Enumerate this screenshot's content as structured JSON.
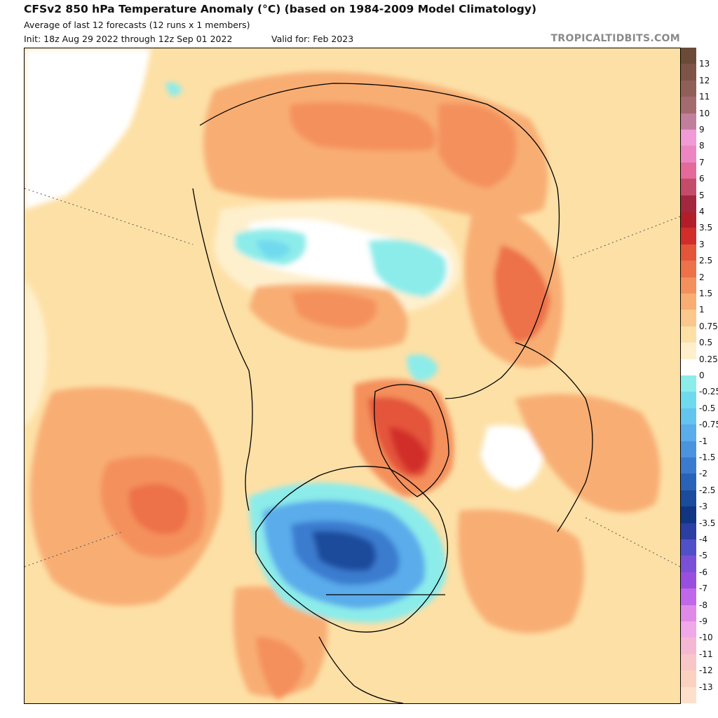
{
  "header": {
    "title": "CFSv2 850 hPa Temperature Anomaly (°C) (based on 1984-2009 Model Climatology)",
    "subtitle": "Average of last 12 forecasts (12 runs x 1 members)",
    "init": "Init: 18z Aug 29 2022 through 12z Sep 01 2022",
    "valid": "Valid for: Feb 2023",
    "brand": "TROPICALTIDBITS.COM"
  },
  "map": {
    "projection": "north-polar-stereographic",
    "field": "850 hPa temperature anomaly",
    "notable_anomalies": [
      "strong cold anomaly over central and eastern Canada and northern USA",
      "strong warm anomaly over Greenland",
      "warm anomaly over northeastern Pacific",
      "warm anomalies over Siberia and Russia",
      "cool anomalies over the Arctic Ocean"
    ]
  },
  "colorbar": {
    "levels": [
      {
        "label": "13",
        "color": "#6b4b38"
      },
      {
        "label": "12",
        "color": "#7d5446"
      },
      {
        "label": "11",
        "color": "#8f5f58"
      },
      {
        "label": "10",
        "color": "#a36b6e"
      },
      {
        "label": "9",
        "color": "#c27f9c"
      },
      {
        "label": "8",
        "color": "#f09ad6"
      },
      {
        "label": "7",
        "color": "#ec86c3"
      },
      {
        "label": "6",
        "color": "#e36a9a"
      },
      {
        "label": "5",
        "color": "#c44c6a"
      },
      {
        "label": "4",
        "color": "#a3273f"
      },
      {
        "label": "3.5",
        "color": "#b11e2a"
      },
      {
        "label": "3",
        "color": "#d12d2a"
      },
      {
        "label": "2.5",
        "color": "#e4553a"
      },
      {
        "label": "2",
        "color": "#ed7149"
      },
      {
        "label": "1.5",
        "color": "#f4905c"
      },
      {
        "label": "1",
        "color": "#f8ad73"
      },
      {
        "label": "0.75",
        "color": "#fbc78c"
      },
      {
        "label": "0.5",
        "color": "#fde0a6"
      },
      {
        "label": "0.25",
        "color": "#fef0cd"
      },
      {
        "label": "0",
        "color": "#ffffff"
      },
      {
        "label": "-0.25",
        "color": "#8cecea"
      },
      {
        "label": "-0.5",
        "color": "#6fd9ee"
      },
      {
        "label": "-0.75",
        "color": "#63c4ef"
      },
      {
        "label": "-1",
        "color": "#5aaceb"
      },
      {
        "label": "-1.5",
        "color": "#4a93df"
      },
      {
        "label": "-2",
        "color": "#3a7bcf"
      },
      {
        "label": "-2.5",
        "color": "#2a62b8"
      },
      {
        "label": "-3",
        "color": "#1a4b9c"
      },
      {
        "label": "-3.5",
        "color": "#0f3583"
      },
      {
        "label": "-4",
        "color": "#2a3ea3"
      },
      {
        "label": "-5",
        "color": "#5050c8"
      },
      {
        "label": "-6",
        "color": "#7a50d8"
      },
      {
        "label": "-7",
        "color": "#9a4ee0"
      },
      {
        "label": "-8",
        "color": "#c068ea"
      },
      {
        "label": "-9",
        "color": "#e08ae8"
      },
      {
        "label": "-10",
        "color": "#f0a8e8"
      },
      {
        "label": "-11",
        "color": "#f5b8d4"
      },
      {
        "label": "-12",
        "color": "#f8c6c6"
      },
      {
        "label": "-13",
        "color": "#fbd2c0"
      },
      {
        "label": "",
        "color": "#fde0cc"
      }
    ]
  }
}
